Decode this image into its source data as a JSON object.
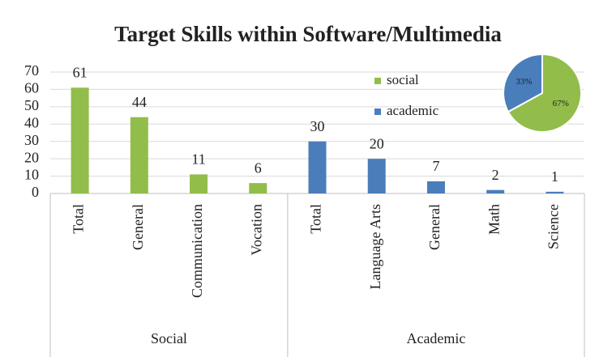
{
  "chart_data": [
    {
      "type": "bar",
      "title": "Target Skills within Software/Multimedia",
      "groups": [
        {
          "name": "Social",
          "categories": [
            "Total",
            "General",
            "Communication",
            "Vocation"
          ]
        },
        {
          "name": "Academic",
          "categories": [
            "Total",
            "Language Arts",
            "General",
            "Math",
            "Science"
          ]
        }
      ],
      "series": [
        {
          "name": "social",
          "color": "#92bd4a",
          "values": [
            61,
            44,
            11,
            6,
            null,
            null,
            null,
            null,
            null
          ]
        },
        {
          "name": "academic",
          "color": "#4a7ebb",
          "values": [
            null,
            null,
            null,
            null,
            30,
            20,
            7,
            2,
            1
          ]
        }
      ],
      "ylim": [
        0,
        70
      ],
      "yticks": [
        0,
        10,
        20,
        30,
        40,
        50,
        60,
        70
      ],
      "grid": true
    },
    {
      "type": "pie",
      "categories": [
        "social",
        "academic"
      ],
      "values": [
        67,
        33
      ],
      "value_labels": [
        "67%",
        "33%"
      ],
      "colors": [
        "#92bd4a",
        "#4a7ebb"
      ]
    }
  ]
}
